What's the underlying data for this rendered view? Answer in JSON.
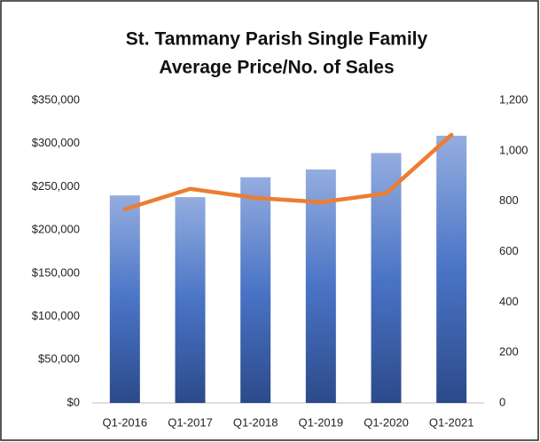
{
  "chart_data": {
    "type": "bar_line",
    "title": [
      "St. Tammany Parish Single Family",
      "Average Price/No. of Sales"
    ],
    "categories": [
      "Q1-2016",
      "Q1-2017",
      "Q1-2018",
      "Q1-2019",
      "Q1-2020",
      "Q1-2021"
    ],
    "series": [
      {
        "type": "bar",
        "color": "#4472c4",
        "values": [
          240000,
          238000,
          261000,
          270000,
          289000,
          309000
        ]
      },
      {
        "type": "line",
        "axis": "y2",
        "color": "#ed7d31",
        "values": [
          768,
          849,
          813,
          796,
          831,
          1063
        ]
      }
    ],
    "ylim": [
      0,
      350000
    ],
    "yticks": [
      {
        "value": 0,
        "label": "$0"
      },
      {
        "value": 50000,
        "label": "$50,000"
      },
      {
        "value": 100000,
        "label": "$100,000"
      },
      {
        "value": 150000,
        "label": "$150,000"
      },
      {
        "value": 200000,
        "label": "$200,000"
      },
      {
        "value": 250000,
        "label": "$250,000"
      },
      {
        "value": 300000,
        "label": "$300,000"
      },
      {
        "value": 350000,
        "label": "$350,000"
      }
    ],
    "y2lim": [
      0,
      1200
    ],
    "y2ticks": [
      0,
      200,
      400,
      600,
      800,
      {
        "value": 1000,
        "label": "1,000"
      },
      {
        "value": 1200,
        "label": "1,200"
      }
    ]
  }
}
